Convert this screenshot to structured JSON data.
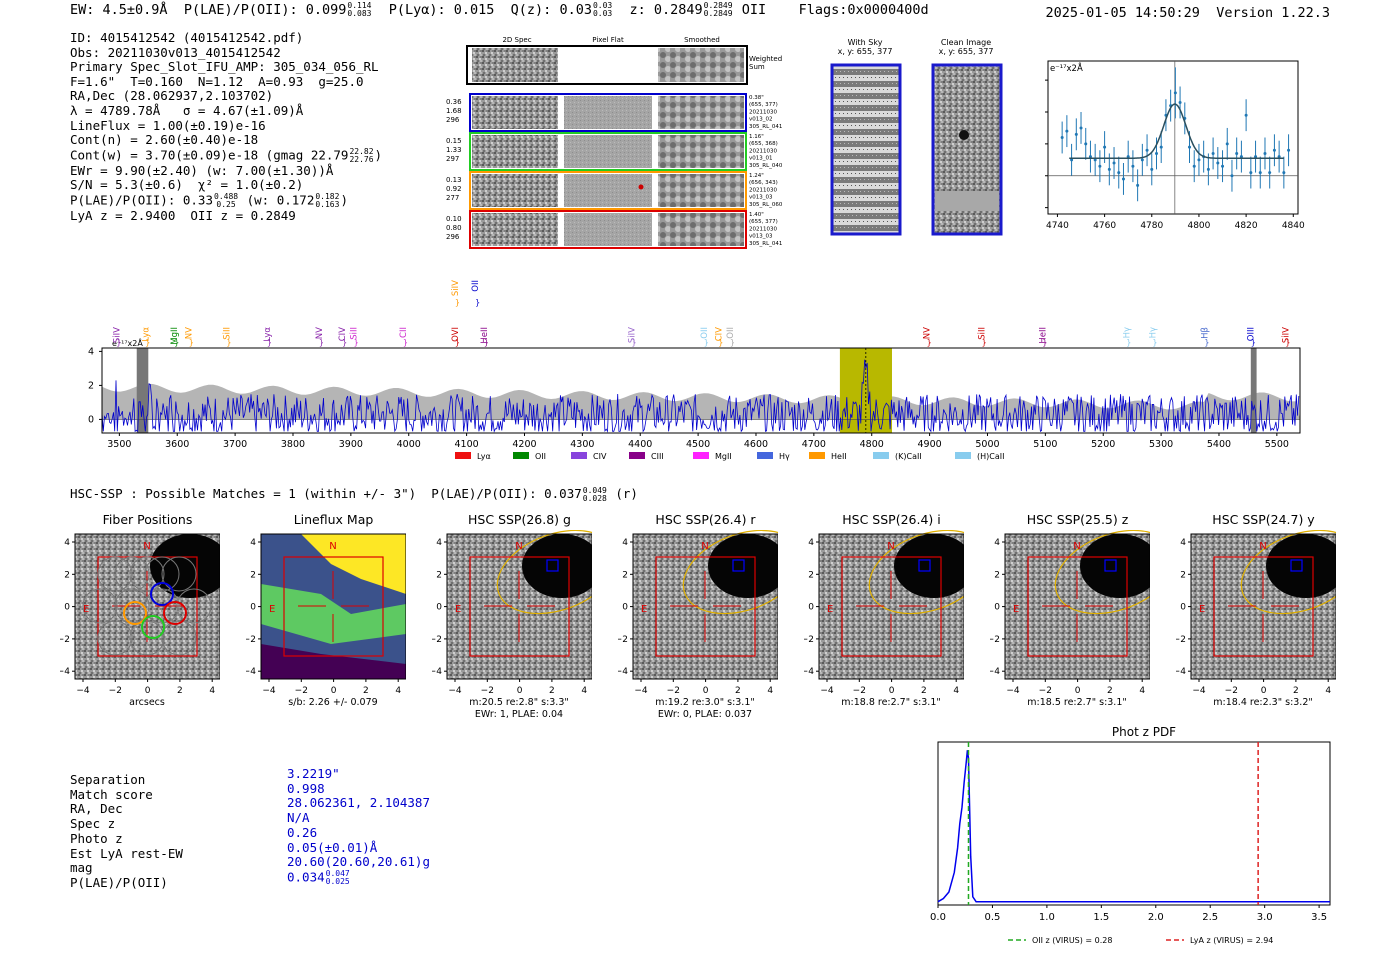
{
  "header": {
    "ew": "EW: 4.5±0.9Å",
    "plae_label": "P(LAE)/P(OII): 0.099",
    "plae_hi": "0.114",
    "plae_lo": "0.083",
    "plya": "P(Lyα): 0.015",
    "q_label": "Q(z): 0.03",
    "q_hi": "0.03",
    "q_lo": "0.03",
    "z_label": "z: 0.2849",
    "z_hi": "0.2849",
    "z_lo": "0.2849",
    "line": "OII",
    "flags": "Flags:0x0000400d",
    "timestamp": "2025-01-05 14:50:29",
    "version": "Version 1.22.3"
  },
  "info": {
    "id": "ID: 4015412542 (4015412542.pdf)",
    "obs": "Obs: 20211030v013_4015412542",
    "primary": "Primary Spec_Slot_IFU_AMP: 305_034_056_RL",
    "params": "F=1.6\"  T=0.160  N=1.12  A=0.93  g=25.0",
    "radec": "RA,Dec (28.062937,2.103702)",
    "lambda": "λ = 4789.78Å   σ = 4.67(±1.09)Å",
    "lineflux": "LineFlux = 1.00(±0.19)e-16",
    "contn": "Cont(n) = 2.60(±0.40)e-18",
    "contw": "Cont(w) = 3.70(±0.09)e-18 (gmag 22.79",
    "contw_hi": "22.82",
    "contw_lo": "22.76",
    "ewr": "EWr = 9.90(±2.40) (w: 7.00(±1.30))Å",
    "sn": "S/N = 5.3(±0.6)  χ² = 1.0(±0.2)",
    "plae": "P(LAE)/P(OII): 0.33",
    "plae_hi": "0.488",
    "plae_lo": "0.25",
    "plae_w": "(w: 0.172",
    "plae_w_hi": "0.182",
    "plae_w_lo": "0.163",
    "lya": "LyA z = 2.9400  OII z = 0.2849"
  },
  "spec2d": {
    "col_labels": [
      "2D Spec",
      "Pixel Flat",
      "Smoothed"
    ],
    "weighted": "Weighted Sum",
    "rows": [
      {
        "left": [
          "0.36",
          "1.68",
          "296"
        ],
        "right": [
          "0.38\"",
          "(655, 377)",
          "20211030",
          "v013_02",
          "305_RL_041"
        ],
        "color": "#0000cc"
      },
      {
        "left": [
          "0.15",
          "1.33",
          "297"
        ],
        "right": [
          "1.16\"",
          "(655, 368)",
          "20211030",
          "v013_01",
          "305_RL_040"
        ],
        "color": "#22cc22"
      },
      {
        "left": [
          "0.13",
          "0.92",
          "277"
        ],
        "right": [
          "1.24\"",
          "(656, 343)",
          "20211030",
          "v013_03",
          "305_RL_060"
        ],
        "color": "#ff9900"
      },
      {
        "left": [
          "0.10",
          "0.80",
          "296"
        ],
        "right": [
          "1.40\"",
          "(655, 377)",
          "20211030",
          "v013_03",
          "305_RL_041"
        ],
        "color": "#dd0000"
      }
    ]
  },
  "cutouts_top": {
    "with_sky": "With Sky",
    "with_sky_xy": "x, y: 655, 377",
    "clean": "Clean Image",
    "clean_xy": "x, y: 655, 377"
  },
  "zoom_chart": {
    "chart_data": {
      "type": "scatter",
      "ylabel": "e⁻¹⁷x2Å",
      "xlim": [
        4736,
        4842
      ],
      "ylim": [
        -1.2,
        3.6
      ],
      "xticks": [
        4740,
        4760,
        4780,
        4800,
        4820,
        4840
      ],
      "yticks": [
        -1,
        0,
        1,
        2,
        3
      ],
      "x": [
        4742,
        4744,
        4746,
        4748,
        4750,
        4752,
        4754,
        4756,
        4758,
        4760,
        4762,
        4764,
        4766,
        4768,
        4770,
        4772,
        4774,
        4776,
        4778,
        4780,
        4782,
        4784,
        4786,
        4788,
        4790,
        4792,
        4794,
        4796,
        4798,
        4800,
        4802,
        4804,
        4806,
        4808,
        4810,
        4812,
        4814,
        4816,
        4818,
        4820,
        4822,
        4824,
        4826,
        4828,
        4830,
        4832,
        4834,
        4836,
        4838
      ],
      "y": [
        1.2,
        1.4,
        0.5,
        1.3,
        1.5,
        1.0,
        0.6,
        0.5,
        0.3,
        0.9,
        0.2,
        0.4,
        0.1,
        -0.1,
        0.6,
        0.3,
        -0.3,
        0.5,
        0.8,
        0.2,
        0.7,
        0.9,
        1.9,
        2.2,
        2.6,
        2.3,
        1.8,
        0.9,
        0.3,
        0.5,
        0.6,
        0.2,
        0.7,
        0.4,
        0.3,
        1.0,
        0.0,
        0.7,
        0.6,
        1.9,
        0.1,
        0.6,
        0.1,
        0.7,
        0.1,
        0.8,
        0.6,
        0.1,
        0.8
      ],
      "err": [
        0.5,
        0.5,
        0.5,
        0.5,
        0.5,
        0.5,
        0.5,
        0.5,
        0.5,
        0.5,
        0.5,
        0.5,
        0.5,
        0.5,
        0.5,
        0.5,
        0.5,
        0.5,
        0.5,
        0.5,
        0.5,
        0.5,
        0.5,
        0.5,
        0.8,
        0.5,
        0.5,
        0.5,
        0.5,
        0.5,
        0.5,
        0.5,
        0.5,
        0.5,
        0.5,
        0.5,
        0.5,
        0.5,
        0.5,
        0.5,
        0.5,
        0.5,
        0.5,
        0.5,
        0.5,
        0.5,
        0.5,
        0.5,
        0.5
      ],
      "fit": {
        "center": 4789.78,
        "sigma": 4.67,
        "amp": 1.7,
        "base": 0.55,
        "xmin": 4745,
        "xmax": 4836
      }
    }
  },
  "full_spec": {
    "chart_data": {
      "type": "line",
      "ylabel": "e⁻¹⁷x2Å",
      "xlim": [
        3470,
        5540
      ],
      "ylim": [
        -0.8,
        4.2
      ],
      "xticks": [
        3500,
        3600,
        3700,
        3800,
        3900,
        4000,
        4100,
        4200,
        4300,
        4400,
        4500,
        4600,
        4700,
        4800,
        4900,
        5000,
        5100,
        5200,
        5300,
        5400,
        5500
      ],
      "yticks": [
        0,
        2,
        4
      ],
      "highlight": [
        4745,
        4835
      ],
      "center": 4789.78,
      "grey_bands": [
        [
          3530,
          3550
        ],
        [
          5455,
          5465
        ]
      ],
      "lines_top": [
        {
          "name": "SiIV",
          "x": 3500,
          "color": "#8822aa"
        },
        {
          "name": "Lyα",
          "x": 3550,
          "color": "#ff9900"
        },
        {
          "name": "MgII",
          "x": 3600,
          "color": "#008800"
        },
        {
          "name": "NV",
          "x": 3625,
          "color": "#ff9900"
        },
        {
          "name": "SiII",
          "x": 3690,
          "color": "#ff9900"
        },
        {
          "name": "Lyα",
          "x": 3760,
          "color": "#8822aa"
        },
        {
          "name": "NV",
          "x": 3850,
          "color": "#8822aa"
        },
        {
          "name": "CIV",
          "x": 3890,
          "color": "#8822aa"
        },
        {
          "name": "SiII",
          "x": 3910,
          "color": "#cc22cc"
        },
        {
          "name": "CII",
          "x": 3995,
          "color": "#cc22cc"
        },
        {
          "name": "OVI",
          "x": 4085,
          "color": "#cc0000"
        },
        {
          "name": "HeII",
          "x": 4135,
          "color": "#880088"
        },
        {
          "name": "SiIV",
          "x": 4390,
          "color": "#9966cc"
        },
        {
          "name": "OII",
          "x": 4515,
          "color": "#88ccee"
        },
        {
          "name": "CIV",
          "x": 4540,
          "color": "#ff9900"
        },
        {
          "name": "OII",
          "x": 4560,
          "color": "#aaaaaa"
        },
        {
          "name": "NV",
          "x": 4900,
          "color": "#cc0000"
        },
        {
          "name": "SiII",
          "x": 4995,
          "color": "#cc0000"
        },
        {
          "name": "HeII",
          "x": 5100,
          "color": "#880088"
        },
        {
          "name": "Hγ",
          "x": 5245,
          "color": "#88ccee"
        },
        {
          "name": "Hγ",
          "x": 5290,
          "color": "#88ccee"
        },
        {
          "name": "Hβ",
          "x": 5380,
          "color": "#4466cc"
        },
        {
          "name": "OIII",
          "x": 5460,
          "color": "#0000cc"
        },
        {
          "name": "SiIV",
          "x": 5520,
          "color": "#cc0000"
        }
      ],
      "lines_upper": [
        {
          "name": "SiIV",
          "x": 4085,
          "color": "#ff9900"
        },
        {
          "name": "OII",
          "x": 4120,
          "color": "#0000cc"
        }
      ],
      "legend": [
        {
          "name": "Lyα",
          "color": "#ee1111"
        },
        {
          "name": "OII",
          "color": "#008800"
        },
        {
          "name": "CIV",
          "color": "#8844dd"
        },
        {
          "name": "CIII",
          "color": "#880088"
        },
        {
          "name": "MgII",
          "color": "#ff22ff"
        },
        {
          "name": "Hγ",
          "color": "#4466dd"
        },
        {
          "name": "HeII",
          "color": "#ff9900"
        },
        {
          "name": "(K)CaII",
          "color": "#88ccee"
        },
        {
          "name": "(H)CaII",
          "color": "#88ccee"
        }
      ]
    }
  },
  "hsc": {
    "title": "HSC-SSP : Possible Matches = 1 (within +/- 3\")  P(LAE)/P(OII): 0.037",
    "plae_hi": "0.049",
    "plae_lo": "0.028",
    "band": "(r)",
    "panels": [
      {
        "title": "Fiber Positions",
        "line1": "arcsecs",
        "line2": ""
      },
      {
        "title": "Lineflux Map",
        "line1": "s/b: 2.26 +/- 0.079",
        "line2": ""
      },
      {
        "title": "HSC SSP(26.8) g",
        "line1": "m:20.5  re:2.8\"  s:3.3\"",
        "line2": "EWr: 1, PLAE: 0.04"
      },
      {
        "title": "HSC SSP(26.4) r",
        "line1": "m:19.2  re:3.0\"  s:3.1\"",
        "line2": "EWr: 0, PLAE: 0.037"
      },
      {
        "title": "HSC SSP(26.4) i",
        "line1": "m:18.8  re:2.7\"  s:3.1\"",
        "line2": ""
      },
      {
        "title": "HSC SSP(25.5) z",
        "line1": "m:18.5  re:2.7\"  s:3.1\"",
        "line2": ""
      },
      {
        "title": "HSC SSP(24.7) y",
        "line1": "m:18.4  re:2.3\"  s:3.2\"",
        "line2": ""
      }
    ],
    "axis_ticks": [
      "4",
      "2",
      "0",
      "−2",
      "−4"
    ],
    "xaxis_ticks": [
      "−4",
      "−2",
      "0",
      "2",
      "4"
    ],
    "north": "N",
    "east": "E"
  },
  "match": {
    "labels": [
      "Separation",
      "Match score",
      "RA, Dec",
      "Spec z",
      "Photo z",
      "Est LyA rest-EW",
      "mag",
      "P(LAE)/P(OII)"
    ],
    "values": [
      "3.2219\"",
      "0.998",
      "28.062361, 2.104387",
      "N/A",
      "0.26",
      "0.05(±0.01)Å",
      "20.60(20.60,20.61)g",
      "0.034"
    ],
    "plae_hi": "0.047",
    "plae_lo": "0.025"
  },
  "photz": {
    "chart_data": {
      "type": "line",
      "title": "Phot z PDF",
      "xlim": [
        0,
        3.6
      ],
      "ylim": [
        0,
        1
      ],
      "xticks": [
        0.0,
        0.5,
        1.0,
        1.5,
        2.0,
        2.5,
        3.0,
        3.5
      ],
      "x": [
        0.0,
        0.05,
        0.1,
        0.15,
        0.18,
        0.2,
        0.22,
        0.24,
        0.26,
        0.27,
        0.28,
        0.29,
        0.3,
        0.32,
        0.35,
        0.4,
        0.5,
        1.0,
        2.0,
        3.0,
        3.6
      ],
      "y": [
        0.02,
        0.04,
        0.08,
        0.2,
        0.35,
        0.5,
        0.6,
        0.75,
        0.88,
        0.95,
        0.9,
        0.6,
        0.3,
        0.05,
        0.02,
        0.02,
        0.02,
        0.02,
        0.02,
        0.02,
        0.02
      ],
      "oii_z": 0.28,
      "lya_z": 2.94,
      "legend": [
        {
          "label": "OII z (VIRUS) = 0.28",
          "color": "#22aa22"
        },
        {
          "label": "LyA z (VIRUS) = 2.94",
          "color": "#dd2222"
        }
      ]
    }
  }
}
